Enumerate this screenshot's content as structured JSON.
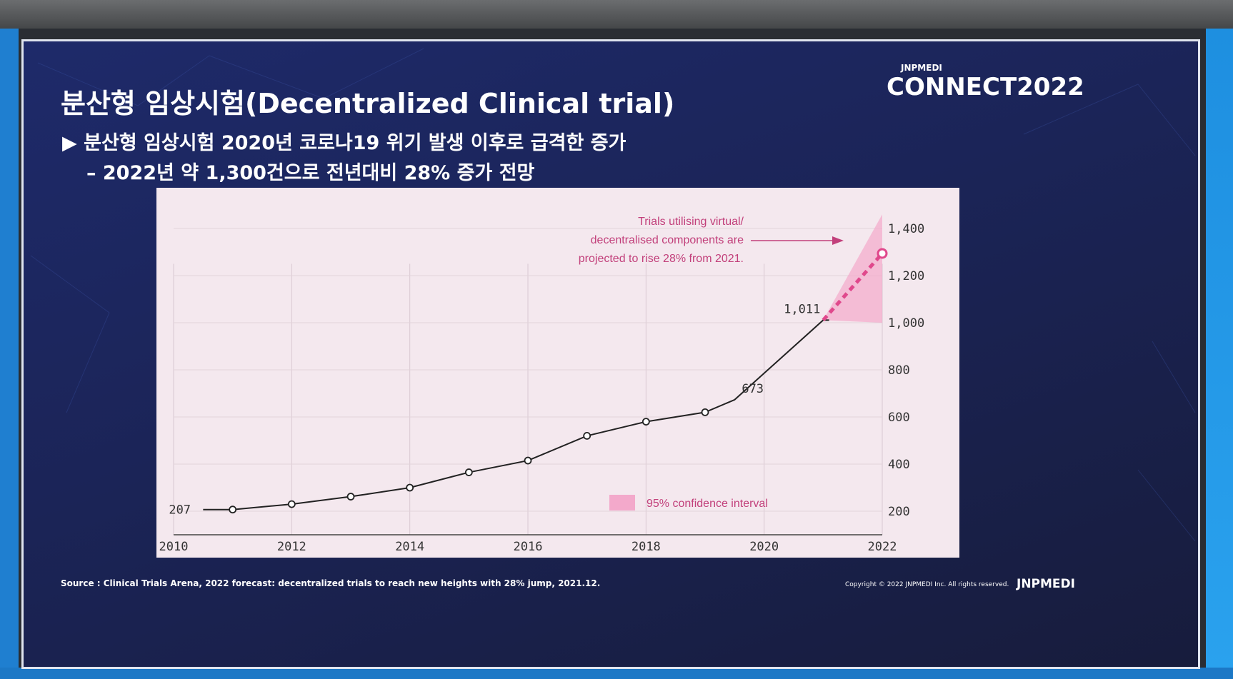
{
  "slide": {
    "title": "분산형 임상시험(Decentralized Clinical trial)",
    "logo_top": "JNPMEDI",
    "logo_main": "CONNECT2022",
    "bullet1": "▶ 분산형 임상시험 2020년 코로나19 위기 발생 이후로 급격한 증가",
    "bullet2": "– 2022년 약 1,300건으로 전년대비 28% 증가 전망",
    "source": "Source : Clinical Trials Arena, 2022 forecast: decentralized trials to reach new heights with 28% jump, 2021.12.",
    "copyright": "Copyright © 2022 JNPMEDI Inc. All rights reserved.",
    "brand": "JNPMEDI"
  },
  "chart_data": {
    "type": "line",
    "x": [
      2010.5,
      2011,
      2012,
      2013,
      2014,
      2015,
      2016,
      2017,
      2018,
      2019,
      2019.5,
      2021,
      2021.1,
      2022
    ],
    "series": [
      {
        "values": [
          207,
          207,
          230,
          262,
          300,
          365,
          415,
          520,
          580,
          620,
          673,
          1011,
          1011,
          null
        ]
      }
    ],
    "marker_years": [
      2011,
      2012,
      2013,
      2014,
      2015,
      2016,
      2017,
      2018,
      2019
    ],
    "projection": {
      "from": [
        2021,
        1011
      ],
      "to": [
        2022,
        1294
      ],
      "ci": [
        [
          2021,
          1011,
          1011
        ],
        [
          2022,
          1000,
          1460
        ]
      ]
    },
    "data_labels": [
      {
        "x": 2010.5,
        "y": 207,
        "text": "207"
      },
      {
        "x": 2019.5,
        "y": 673,
        "text": "673"
      },
      {
        "x": 2021,
        "y": 1011,
        "text": "1,011"
      }
    ],
    "x_ticks": [
      "2010",
      "2012",
      "2014",
      "2016",
      "2018",
      "2020",
      "2022"
    ],
    "y_ticks": [
      "200",
      "400",
      "600",
      "800",
      "1,000",
      "1,200",
      "1,400"
    ],
    "xlim": [
      2010,
      2022
    ],
    "ylim": [
      100,
      1500
    ],
    "annotation_lines": [
      "Trials utilising virtual/",
      "decentralised components are",
      "projected to rise 28% from 2021."
    ],
    "legend": "95% confidence interval",
    "colors": {
      "line": "#222222",
      "projection": "#e0488c",
      "ci": "#f3a9cb",
      "annotation": "#c2407b"
    }
  }
}
